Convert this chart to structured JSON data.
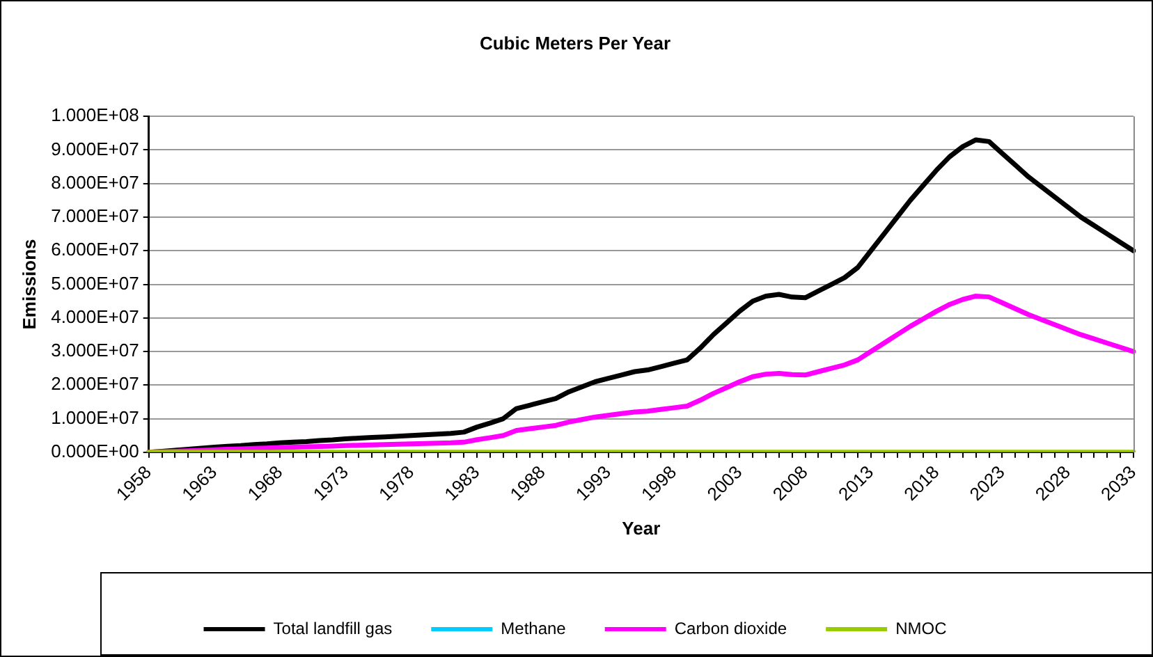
{
  "chart_data": {
    "type": "line",
    "title": "Cubic Meters Per Year",
    "xlabel": "Year",
    "ylabel": "Emissions",
    "categories": [
      "1958",
      null,
      null,
      null,
      null,
      "1963",
      null,
      null,
      null,
      null,
      "1968",
      null,
      null,
      null,
      null,
      "1973",
      null,
      null,
      null,
      null,
      "1978",
      null,
      null,
      null,
      null,
      "1983",
      null,
      null,
      null,
      null,
      "1988",
      null,
      null,
      null,
      null,
      "1993",
      null,
      null,
      null,
      null,
      "1998",
      null,
      null,
      null,
      null,
      "2003",
      null,
      null,
      null,
      null,
      "2008",
      null,
      null,
      null,
      null,
      "2013",
      null,
      null,
      null,
      null,
      "2018",
      null,
      null,
      null,
      null,
      "2023",
      null,
      null,
      null,
      null,
      "2028",
      null,
      null,
      null,
      null,
      "2033"
    ],
    "series": [
      {
        "name": "Total landfill gas",
        "color": "#000000",
        "values": [
          0,
          300000,
          600000,
          900000,
          1200000,
          1500000,
          1800000,
          2000000,
          2300000,
          2500000,
          2800000,
          3000000,
          3200000,
          3500000,
          3700000,
          4000000,
          4200000,
          4400000,
          4600000,
          4800000,
          5000000,
          5200000,
          5400000,
          5600000,
          6000000,
          7500000,
          8700000,
          10000000,
          13000000,
          14000000,
          15000000,
          16000000,
          18000000,
          19500000,
          21000000,
          22000000,
          23000000,
          24000000,
          24500000,
          25500000,
          26500000,
          27500000,
          31000000,
          35000000,
          38500000,
          42000000,
          45000000,
          46500000,
          47000000,
          46200000,
          46000000,
          48000000,
          50000000,
          52000000,
          55000000,
          60000000,
          65000000,
          70000000,
          75000000,
          79500000,
          84000000,
          88000000,
          91000000,
          93000000,
          92500000,
          89000000,
          85500000,
          82000000,
          79000000,
          76000000,
          73000000,
          70000000,
          67500000,
          65000000,
          62500000,
          60000000
        ]
      },
      {
        "name": "Methane",
        "color": "#00ccff",
        "values": [
          null,
          null,
          null,
          null,
          null,
          null,
          null,
          null,
          null,
          null,
          null,
          null,
          null,
          null,
          null,
          null,
          null,
          null,
          null,
          null,
          null,
          null,
          null,
          null,
          null,
          null,
          null,
          null,
          null,
          null,
          null,
          null,
          null,
          null,
          null,
          null,
          null,
          null,
          null,
          null,
          null,
          null,
          null,
          null,
          null,
          null,
          null,
          null,
          null,
          null,
          null,
          null,
          null,
          null,
          null,
          null,
          null,
          null,
          null,
          null,
          null,
          null,
          null,
          null,
          null,
          null,
          null,
          null,
          null,
          null,
          null,
          null,
          null,
          null,
          null,
          null
        ]
      },
      {
        "name": "Carbon dioxide",
        "color": "#ff00ff",
        "values": [
          0,
          150000,
          300000,
          450000,
          600000,
          750000,
          900000,
          1000000,
          1150000,
          1250000,
          1400000,
          1500000,
          1600000,
          1750000,
          1850000,
          2000000,
          2100000,
          2200000,
          2300000,
          2400000,
          2500000,
          2600000,
          2700000,
          2800000,
          3000000,
          3750000,
          4350000,
          5000000,
          6500000,
          7000000,
          7500000,
          8000000,
          9000000,
          9750000,
          10500000,
          11000000,
          11500000,
          12000000,
          12250000,
          12750000,
          13250000,
          13750000,
          15500000,
          17500000,
          19250000,
          21000000,
          22500000,
          23250000,
          23500000,
          23100000,
          23000000,
          24000000,
          25000000,
          26000000,
          27500000,
          30000000,
          32500000,
          35000000,
          37500000,
          39750000,
          42000000,
          44000000,
          45500000,
          46500000,
          46250000,
          44500000,
          42750000,
          41000000,
          39500000,
          38000000,
          36500000,
          35000000,
          33750000,
          32500000,
          31250000,
          30000000
        ]
      },
      {
        "name": "NMOC",
        "color": "#99cc00",
        "values": [
          0,
          0,
          0,
          0,
          0,
          0,
          0,
          0,
          0,
          0,
          0,
          0,
          0,
          0,
          0,
          0,
          0,
          0,
          0,
          0,
          0,
          0,
          0,
          0,
          0,
          0,
          0,
          0,
          0,
          0,
          0,
          0,
          0,
          0,
          0,
          0,
          0,
          0,
          0,
          0,
          0,
          0,
          0,
          0,
          0,
          0,
          0,
          0,
          0,
          0,
          0,
          0,
          0,
          0,
          0,
          0,
          0,
          0,
          0,
          0,
          0,
          0,
          0,
          0,
          0,
          0,
          0,
          0,
          0,
          0,
          0,
          0,
          0,
          0,
          0,
          0
        ]
      }
    ],
    "ylim": [
      0,
      100000000
    ],
    "yticks": [
      {
        "value": 0,
        "label": "0.000E+00"
      },
      {
        "value": 10000000,
        "label": "1.000E+07"
      },
      {
        "value": 20000000,
        "label": "2.000E+07"
      },
      {
        "value": 30000000,
        "label": "3.000E+07"
      },
      {
        "value": 40000000,
        "label": "4.000E+07"
      },
      {
        "value": 50000000,
        "label": "5.000E+07"
      },
      {
        "value": 60000000,
        "label": "6.000E+07"
      },
      {
        "value": 70000000,
        "label": "7.000E+07"
      },
      {
        "value": 80000000,
        "label": "8.000E+07"
      },
      {
        "value": 90000000,
        "label": "9.000E+07"
      },
      {
        "value": 100000000,
        "label": "1.000E+08"
      }
    ],
    "grid": "y",
    "legend": "bottom",
    "marker": "none",
    "line_style": "solid"
  }
}
